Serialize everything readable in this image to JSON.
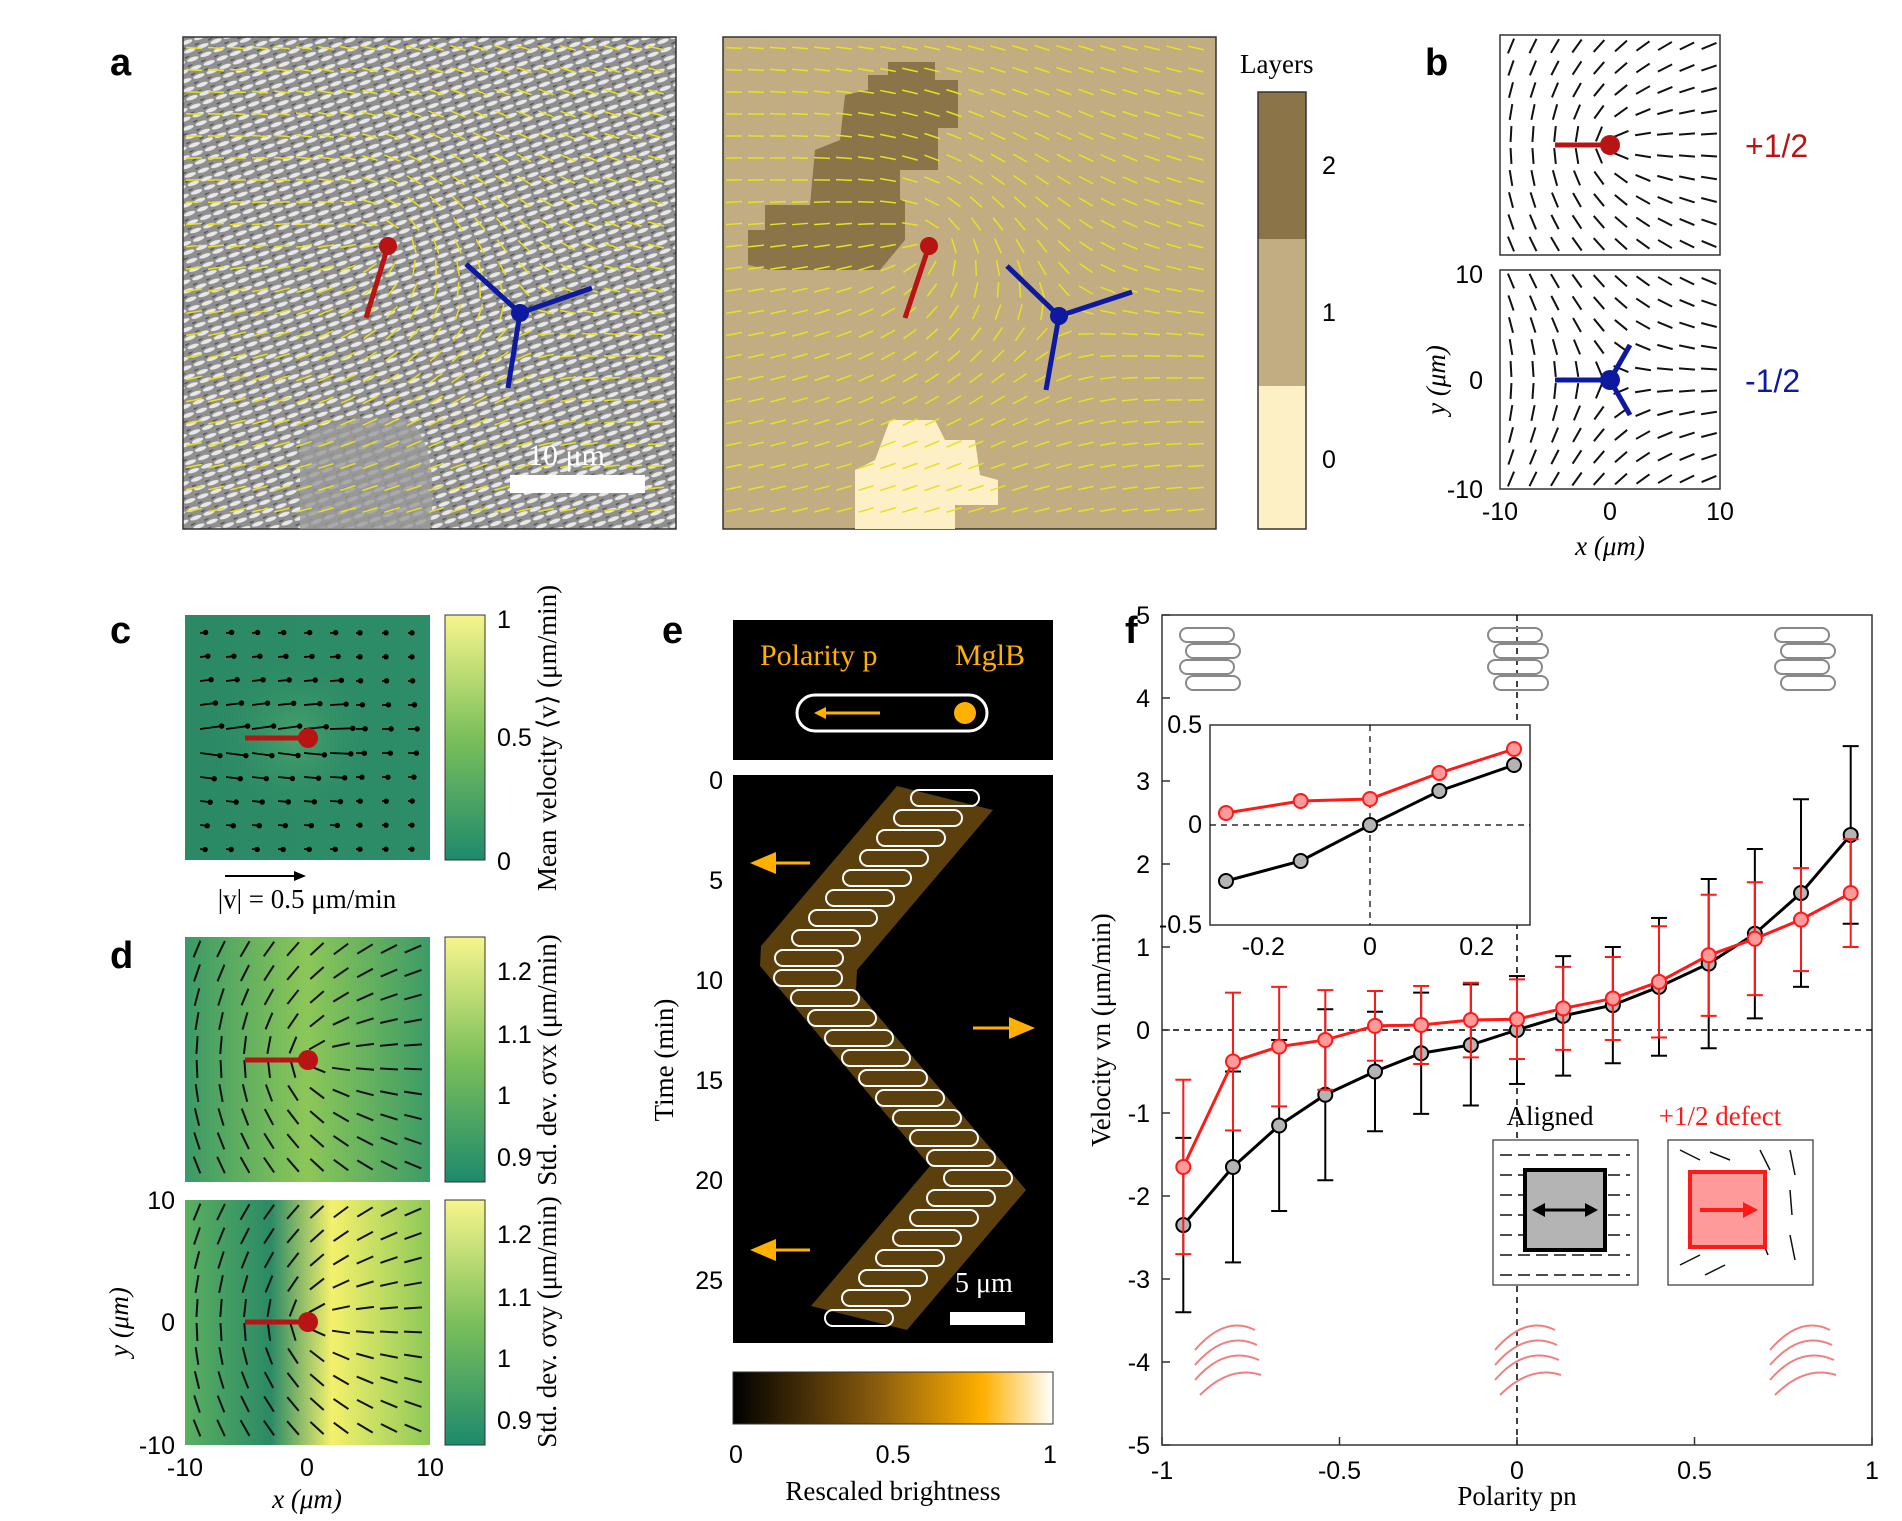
{
  "figure": {
    "panels": {
      "a": "a",
      "b": "b",
      "c": "c",
      "d": "d",
      "e": "e",
      "f": "f"
    }
  },
  "panel_a": {
    "scale_bar": "10 μm",
    "layers_label": "Layers",
    "layer_ticks": [
      "2",
      "1",
      "0"
    ],
    "colors": {
      "layer0": "#fdf0c6",
      "layer1": "#c2ad82",
      "layer2": "#8b7548",
      "plus": "#b81414",
      "minus": "#0d1aa0",
      "director": "#e8e020"
    }
  },
  "panel_b": {
    "plus_label": "+1/2",
    "minus_label": "-1/2",
    "xlabel": "x (μm)",
    "ylabel": "y (μm)",
    "x_ticks": [
      "-10",
      "0",
      "10"
    ],
    "y_ticks": [
      "10",
      "0",
      "-10"
    ]
  },
  "panel_c": {
    "colorbar_label": "Mean velocity ⟨v⟩ (μm/min)",
    "colorbar_ticks": [
      "1",
      "0.5",
      "0"
    ],
    "arrow_legend": "|v| = 0.5 μm/min"
  },
  "panel_d": {
    "top_colorbar_label": "Std. dev. σvx (μm/min)",
    "bottom_colorbar_label": "Std. dev. σvy (μm/min)",
    "colorbar_ticks": [
      "1.2",
      "1.1",
      "1",
      "0.9"
    ],
    "xlabel": "x (μm)",
    "ylabel": "y (μm)",
    "x_ticks": [
      "-10",
      "0",
      "10"
    ],
    "y_ticks": [
      "10",
      "0",
      "-10"
    ]
  },
  "panel_e": {
    "polarity_label": "Polarity p",
    "protein_label": "MglB",
    "ylabel": "Time (min)",
    "time_ticks": [
      "0",
      "5",
      "10",
      "15",
      "20",
      "25"
    ],
    "scale_bar": "5 μm",
    "colorbar_label": "Rescaled brightness",
    "colorbar_ticks": [
      "0",
      "0.5",
      "1"
    ]
  },
  "chart_data": {
    "type": "line",
    "title": "",
    "xlabel": "Polarity pn",
    "ylabel": "Velocity vn (μm/min)",
    "xlim": [
      -1,
      1
    ],
    "ylim": [
      -5,
      5
    ],
    "x_ticks": [
      "-1",
      "-0.5",
      "0",
      "0.5",
      "1"
    ],
    "y_ticks": [
      "5",
      "4",
      "3",
      "2",
      "1",
      "0",
      "-1",
      "-2",
      "-3",
      "-4",
      "-5"
    ],
    "x": [
      -0.94,
      -0.8,
      -0.67,
      -0.54,
      -0.4,
      -0.27,
      -0.13,
      0,
      0.13,
      0.27,
      0.4,
      0.54,
      0.67,
      0.8,
      0.94
    ],
    "series": [
      {
        "name": "Aligned",
        "color": "#000000",
        "marker_fill": "#b4b4b4",
        "values": [
          -2.35,
          -1.65,
          -1.15,
          -0.78,
          -0.5,
          -0.28,
          -0.18,
          0.0,
          0.17,
          0.3,
          0.52,
          0.8,
          1.16,
          1.65,
          2.35
        ],
        "errors": [
          1.05,
          1.15,
          1.03,
          1.03,
          0.72,
          0.73,
          0.73,
          0.65,
          0.72,
          0.7,
          0.83,
          1.02,
          1.02,
          1.13,
          1.07
        ]
      },
      {
        "name": "+1/2 defect",
        "color": "#ff1a1a",
        "marker_fill": "#ff9a9a",
        "values": [
          -1.65,
          -0.38,
          -0.2,
          -0.12,
          0.05,
          0.06,
          0.12,
          0.13,
          0.26,
          0.38,
          0.58,
          0.9,
          1.1,
          1.33,
          1.65
        ],
        "errors": [
          1.05,
          0.83,
          0.72,
          0.6,
          0.42,
          0.47,
          0.45,
          0.48,
          0.5,
          0.5,
          0.67,
          0.73,
          0.68,
          0.62,
          0.65
        ]
      }
    ],
    "inset": {
      "xlim": [
        -0.3,
        0.3
      ],
      "ylim": [
        -0.5,
        0.5
      ],
      "x_ticks": [
        "-0.2",
        "0",
        "0.2"
      ],
      "y_ticks": [
        "0.5",
        "0",
        "-0.5"
      ],
      "x": [
        -0.27,
        -0.13,
        0,
        0.13,
        0.27
      ],
      "aligned": [
        -0.28,
        -0.18,
        0.0,
        0.17,
        0.3
      ],
      "defect": [
        0.06,
        0.12,
        0.13,
        0.26,
        0.38
      ]
    },
    "legend": {
      "aligned": "Aligned",
      "defect": "+1/2 defect"
    }
  }
}
